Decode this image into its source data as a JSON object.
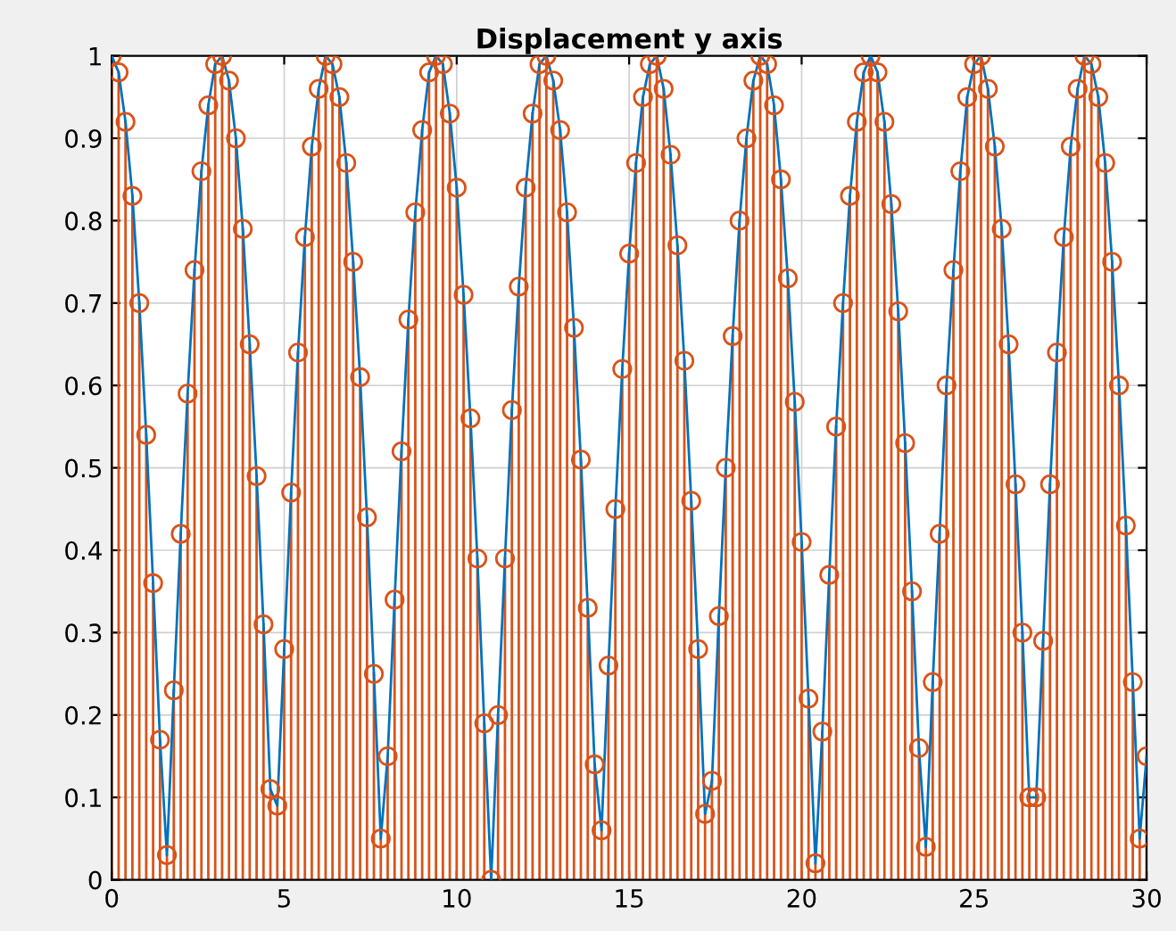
{
  "chart_data": {
    "type": "line",
    "title": "Displacement y axis",
    "x": [
      0,
      0.2,
      0.4,
      0.6,
      0.8,
      1,
      1.2,
      1.4,
      1.6,
      1.8,
      2,
      2.2,
      2.4,
      2.6,
      2.8,
      3,
      3.2,
      3.4,
      3.6,
      3.8,
      4,
      4.2,
      4.4,
      4.6,
      4.8,
      5,
      5.2,
      5.4,
      5.6,
      5.8,
      6,
      6.2,
      6.4,
      6.6,
      6.8,
      7,
      7.2,
      7.4,
      7.6,
      7.8,
      8,
      8.2,
      8.4,
      8.6,
      8.8,
      9,
      9.2,
      9.4,
      9.6,
      9.8,
      10,
      10.2,
      10.4,
      10.6,
      10.8,
      11,
      11.2,
      11.4,
      11.6,
      11.8,
      12,
      12.2,
      12.4,
      12.6,
      12.8,
      13,
      13.2,
      13.4,
      13.6,
      13.8,
      14,
      14.2,
      14.4,
      14.6,
      14.8,
      15,
      15.2,
      15.4,
      15.6,
      15.8,
      16,
      16.2,
      16.4,
      16.6,
      16.8,
      17,
      17.2,
      17.4,
      17.6,
      17.8,
      18,
      18.2,
      18.4,
      18.6,
      18.8,
      19,
      19.2,
      19.4,
      19.6,
      19.8,
      20,
      20.2,
      20.4,
      20.6,
      20.8,
      21,
      21.2,
      21.4,
      21.6,
      21.8,
      22,
      22.2,
      22.4,
      22.6,
      22.8,
      23,
      23.2,
      23.4,
      23.6,
      23.8,
      24,
      24.2,
      24.4,
      24.6,
      24.8,
      25,
      25.2,
      25.4,
      25.6,
      25.8,
      26,
      26.2,
      26.4,
      26.6,
      26.8,
      27,
      27.2,
      27.4,
      27.6,
      27.8,
      28,
      28.2,
      28.4,
      28.6,
      28.8,
      29,
      29.2,
      29.4,
      29.6,
      29.8,
      30
    ],
    "series": [
      {
        "color": "#0072bd",
        "values": [
          1.0,
          0.98,
          0.92,
          0.83,
          0.7,
          0.54,
          0.36,
          0.17,
          0.03,
          0.23,
          0.42,
          0.59,
          0.74,
          0.86,
          0.94,
          0.99,
          1.0,
          0.97,
          0.9,
          0.79,
          0.65,
          0.49,
          0.31,
          0.11,
          0.09,
          0.28,
          0.47,
          0.64,
          0.78,
          0.89,
          0.96,
          1.0,
          0.99,
          0.95,
          0.87,
          0.75,
          0.61,
          0.44,
          0.25,
          0.05,
          0.15,
          0.34,
          0.52,
          0.68,
          0.81,
          0.91,
          0.98,
          1.0,
          0.99,
          0.93,
          0.84,
          0.71,
          0.56,
          0.39,
          0.19,
          0.0,
          0.2,
          0.39,
          0.57,
          0.72,
          0.84,
          0.93,
          0.99,
          1.0,
          0.97,
          0.91,
          0.81,
          0.67,
          0.51,
          0.33,
          0.14,
          0.06,
          0.26,
          0.45,
          0.62,
          0.76,
          0.87,
          0.95,
          0.99,
          1.0,
          0.96,
          0.88,
          0.77,
          0.63,
          0.46,
          0.28,
          0.08,
          0.12,
          0.32,
          0.5,
          0.66,
          0.8,
          0.9,
          0.97,
          1.0,
          0.99,
          0.94,
          0.85,
          0.73,
          0.58,
          0.41,
          0.22,
          0.02,
          0.18,
          0.37,
          0.55,
          0.7,
          0.83,
          0.92,
          0.98,
          1.0,
          0.98,
          0.92,
          0.82,
          0.69,
          0.53,
          0.35,
          0.16,
          0.04,
          0.24,
          0.42,
          0.6,
          0.74,
          0.86,
          0.95,
          0.99,
          1.0,
          0.96,
          0.89,
          0.79,
          0.65,
          0.48,
          0.3,
          0.1,
          0.1,
          0.29,
          0.48,
          0.64,
          0.78,
          0.89,
          0.96,
          1.0,
          0.99,
          0.95,
          0.87,
          0.75,
          0.6,
          0.43,
          0.24,
          0.05,
          0.15
        ]
      },
      {
        "type": "lollipop",
        "color": "#d95319",
        "marker": "circle",
        "values": [
          1.0,
          0.98,
          0.92,
          0.83,
          0.7,
          0.54,
          0.36,
          0.17,
          0.03,
          0.23,
          0.42,
          0.59,
          0.74,
          0.86,
          0.94,
          0.99,
          1.0,
          0.97,
          0.9,
          0.79,
          0.65,
          0.49,
          0.31,
          0.11,
          0.09,
          0.28,
          0.47,
          0.64,
          0.78,
          0.89,
          0.96,
          1.0,
          0.99,
          0.95,
          0.87,
          0.75,
          0.61,
          0.44,
          0.25,
          0.05,
          0.15,
          0.34,
          0.52,
          0.68,
          0.81,
          0.91,
          0.98,
          1.0,
          0.99,
          0.93,
          0.84,
          0.71,
          0.56,
          0.39,
          0.19,
          0.0,
          0.2,
          0.39,
          0.57,
          0.72,
          0.84,
          0.93,
          0.99,
          1.0,
          0.97,
          0.91,
          0.81,
          0.67,
          0.51,
          0.33,
          0.14,
          0.06,
          0.26,
          0.45,
          0.62,
          0.76,
          0.87,
          0.95,
          0.99,
          1.0,
          0.96,
          0.88,
          0.77,
          0.63,
          0.46,
          0.28,
          0.08,
          0.12,
          0.32,
          0.5,
          0.66,
          0.8,
          0.9,
          0.97,
          1.0,
          0.99,
          0.94,
          0.85,
          0.73,
          0.58,
          0.41,
          0.22,
          0.02,
          0.18,
          0.37,
          0.55,
          0.7,
          0.83,
          0.92,
          0.98,
          1.0,
          0.98,
          0.92,
          0.82,
          0.69,
          0.53,
          0.35,
          0.16,
          0.04,
          0.24,
          0.42,
          0.6,
          0.74,
          0.86,
          0.95,
          0.99,
          1.0,
          0.96,
          0.89,
          0.79,
          0.65,
          0.48,
          0.3,
          0.1,
          0.1,
          0.29,
          0.48,
          0.64,
          0.78,
          0.89,
          0.96,
          1.0,
          0.99,
          0.95,
          0.87,
          0.75,
          0.6,
          0.43,
          0.24,
          0.05,
          0.15
        ]
      }
    ],
    "xlim": [
      0,
      30
    ],
    "xticks": [
      0,
      5,
      10,
      15,
      20,
      25,
      30
    ],
    "ylim": [
      0,
      1
    ],
    "yticks": [
      0,
      0.1,
      0.2,
      0.3,
      0.4,
      0.5,
      0.6,
      0.7,
      0.8,
      0.9,
      1
    ],
    "grid": true
  }
}
